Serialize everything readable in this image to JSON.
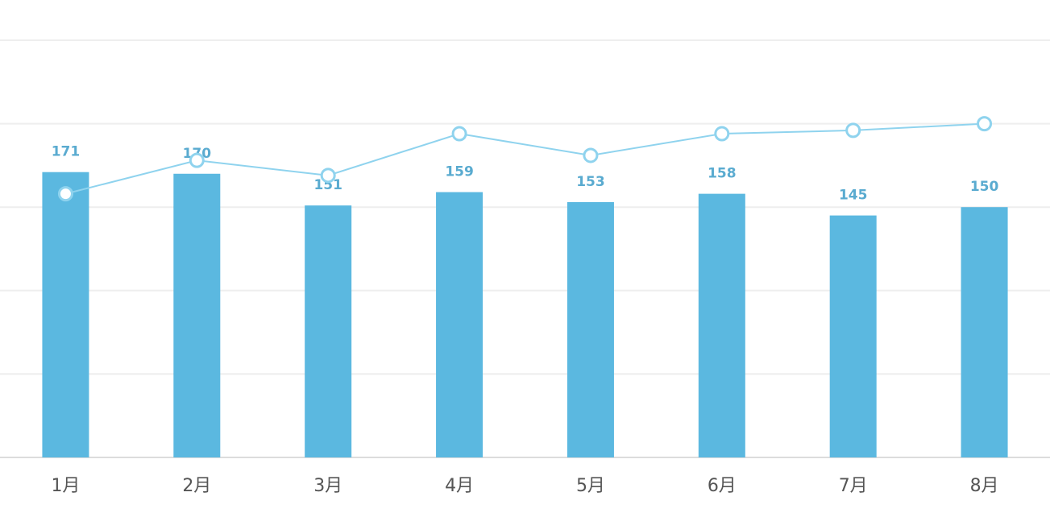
{
  "chart_data": {
    "type": "bar-line",
    "categories": [
      "1月",
      "2月",
      "3月",
      "4月",
      "5月",
      "6月",
      "7月",
      "8月"
    ],
    "series": [
      {
        "type": "bar",
        "color": "#5bb8e0",
        "label_color": "#5aabd0",
        "values": [
          171,
          170,
          151,
          159,
          153,
          158,
          145,
          150
        ]
      },
      {
        "type": "line",
        "color": "#8fd3ee",
        "values": [
          158,
          178,
          169,
          194,
          181,
          194,
          196,
          200
        ]
      }
    ],
    "ylim": [
      0,
      250
    ],
    "yticks": [
      0,
      50,
      100,
      150,
      200,
      250
    ],
    "grid": true
  }
}
